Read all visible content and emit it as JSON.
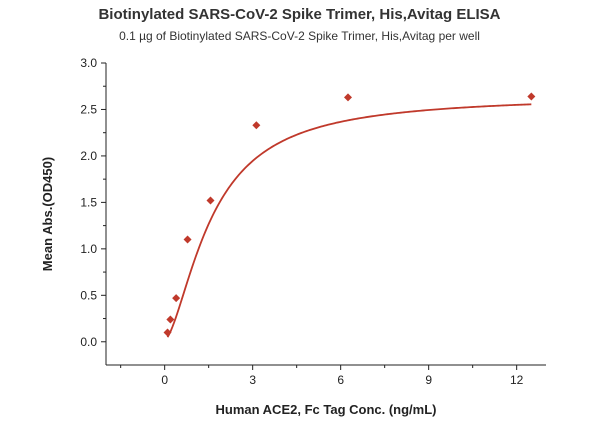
{
  "chart_data": {
    "type": "scatter",
    "title": "Biotinylated SARS-CoV-2 Spike Trimer, His,Avitag ELISA",
    "subtitle": "0.1 µg of Biotinylated SARS-CoV-2 Spike Trimer, His,Avitag per well",
    "xlabel": "Human ACE2, Fc Tag Conc. (ng/mL)",
    "ylabel": "Mean Abs.(OD450)",
    "xlim": [
      -2,
      13
    ],
    "ylim": [
      -0.25,
      3.0
    ],
    "x_ticks": [
      0,
      3,
      6,
      9,
      12
    ],
    "y_ticks": [
      0.0,
      0.5,
      1.0,
      1.5,
      2.0,
      2.5,
      3.0
    ],
    "x_tick_labels": [
      "0",
      "3",
      "6",
      "9",
      "12"
    ],
    "y_tick_labels": [
      "0.0",
      "0.5",
      "1.0",
      "1.5",
      "2.0",
      "2.5",
      "3.0"
    ],
    "grid": false,
    "series": [
      {
        "marker": "diamond",
        "color": "#c0392b",
        "x": [
          0.098,
          0.195,
          0.391,
          0.781,
          1.563,
          3.125,
          6.25,
          12.5
        ],
        "y": [
          0.1,
          0.24,
          0.47,
          1.1,
          1.52,
          2.33,
          2.63,
          2.64
        ]
      }
    ],
    "fit_curve": {
      "color": "#c0392b",
      "model": "4PL",
      "bottom": 0.02,
      "top": 2.65,
      "ec50": 1.6,
      "hill": 1.6
    }
  }
}
